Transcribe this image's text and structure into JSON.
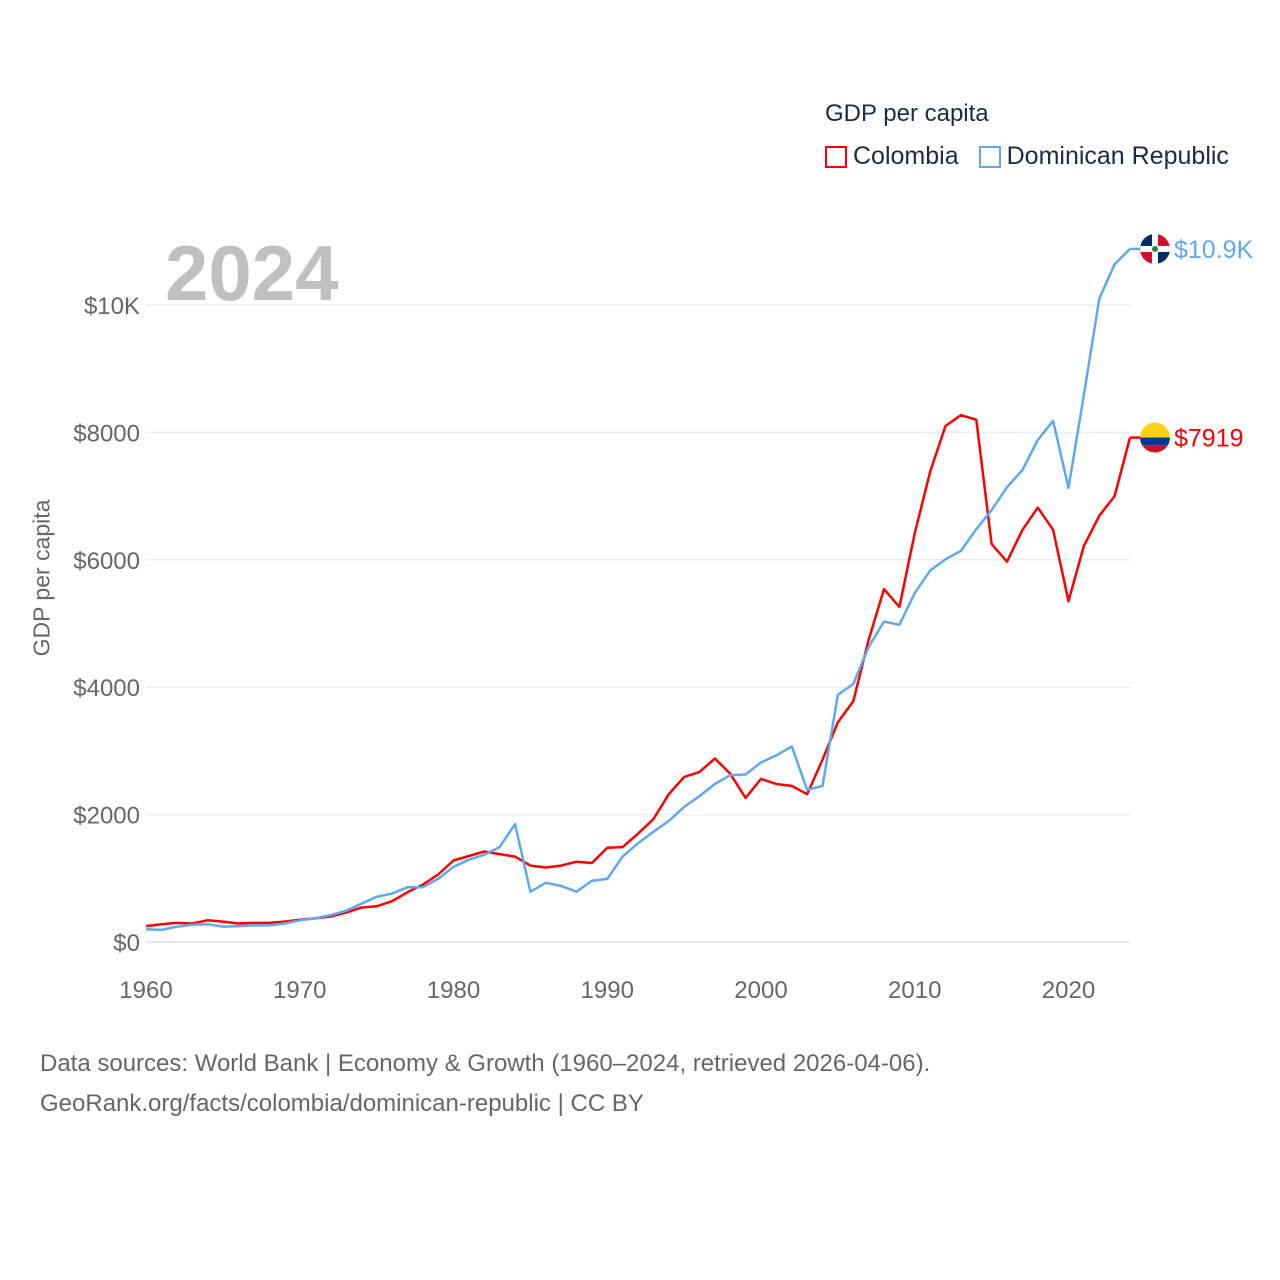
{
  "legend": {
    "title": "GDP per capita",
    "items": [
      {
        "label": "Colombia",
        "color": "#ff0000"
      },
      {
        "label": "Dominican Republic",
        "color": "#5fa8ef"
      }
    ]
  },
  "year_label": "2024",
  "footer": {
    "line1": "Data sources: World Bank | Economy & Growth (1960–2024, retrieved 2026-04-06).",
    "line2": "GeoRank.org/facts/colombia/dominican-republic | CC BY"
  },
  "chart_data": {
    "type": "line",
    "title": "GDP per capita",
    "xlabel": "",
    "ylabel": "GDP per capita",
    "xlim": [
      1960,
      2024
    ],
    "ylim": [
      0,
      10000
    ],
    "x_ticks": [
      1960,
      1970,
      1980,
      1990,
      2000,
      2010,
      2020
    ],
    "y_ticks": [
      {
        "value": 0,
        "label": "$0"
      },
      {
        "value": 2000,
        "label": "$2000"
      },
      {
        "value": 4000,
        "label": "$4000"
      },
      {
        "value": 6000,
        "label": "$6000"
      },
      {
        "value": 8000,
        "label": "$8000"
      },
      {
        "value": 10000,
        "label": "$10K"
      }
    ],
    "grid": true,
    "legend_position": "top-right",
    "x_start": 1960,
    "series": [
      {
        "name": "Colombia",
        "color": "#ff0000",
        "end_label": "$7919",
        "flag": "colombia-flag",
        "values": [
          250,
          280,
          300,
          290,
          340,
          320,
          290,
          300,
          300,
          320,
          350,
          370,
          400,
          460,
          540,
          560,
          640,
          780,
          900,
          1060,
          1280,
          1350,
          1420,
          1380,
          1340,
          1200,
          1170,
          1200,
          1260,
          1240,
          1480,
          1490,
          1700,
          1930,
          2320,
          2590,
          2670,
          2880,
          2640,
          2260,
          2560,
          2480,
          2450,
          2320,
          2860,
          3450,
          3780,
          4740,
          5540,
          5260,
          6420,
          7380,
          8100,
          8270,
          8200,
          6250,
          5970,
          6470,
          6820,
          6470,
          5350,
          6220,
          6690,
          7000,
          7919
        ]
      },
      {
        "name": "Dominican Republic",
        "color": "#5fa8ef",
        "end_label": "$10.9K",
        "flag": "dominican-republic-flag",
        "values": [
          200,
          190,
          240,
          270,
          280,
          240,
          250,
          260,
          260,
          290,
          340,
          370,
          420,
          490,
          600,
          710,
          760,
          860,
          860,
          990,
          1180,
          1290,
          1370,
          1490,
          1850,
          790,
          930,
          880,
          790,
          960,
          990,
          1340,
          1550,
          1730,
          1900,
          2120,
          2290,
          2480,
          2620,
          2630,
          2820,
          2930,
          3070,
          2390,
          2450,
          3880,
          4050,
          4630,
          5030,
          4980,
          5480,
          5830,
          6010,
          6140,
          6480,
          6780,
          7140,
          7410,
          7880,
          8180,
          7130,
          8590,
          10100,
          10640,
          10880
        ]
      }
    ]
  }
}
